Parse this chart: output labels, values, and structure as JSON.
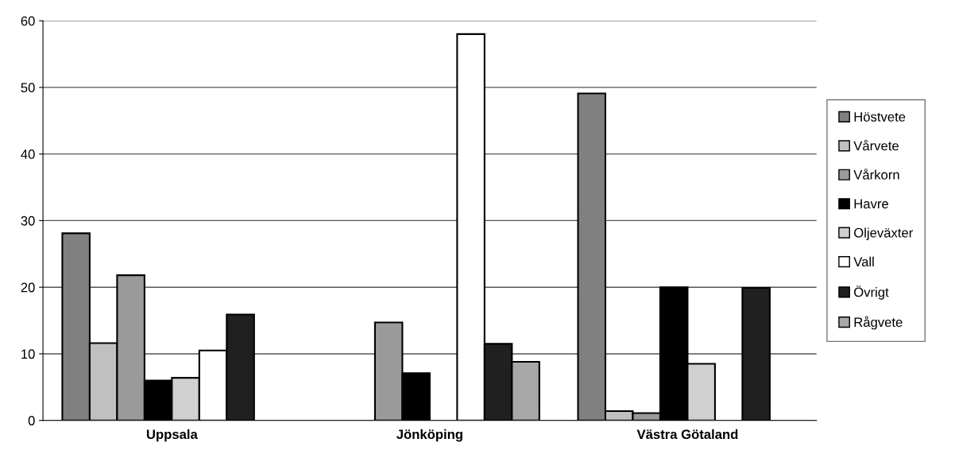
{
  "chart_data": {
    "type": "bar",
    "categories": [
      "Uppsala",
      "Jönköping",
      "Västra Götaland"
    ],
    "series": [
      {
        "name": "Höstvete",
        "color": "#808080",
        "values": [
          28.1,
          null,
          49.1
        ]
      },
      {
        "name": "Vårvete",
        "color": "#c0c0c0",
        "values": [
          11.6,
          null,
          1.4
        ]
      },
      {
        "name": "Vårkorn",
        "color": "#9a9a9a",
        "values": [
          21.8,
          14.7,
          1.1
        ]
      },
      {
        "name": "Havre",
        "color": "#000000",
        "values": [
          6.0,
          7.1,
          20.0
        ]
      },
      {
        "name": "Oljeväxter",
        "color": "#d0d0d0",
        "values": [
          6.4,
          null,
          8.5
        ]
      },
      {
        "name": "Vall",
        "color": "#ffffff",
        "values": [
          10.5,
          58.0,
          null
        ]
      },
      {
        "name": "Övrigt",
        "color": "#202020",
        "values": [
          15.9,
          11.5,
          19.9
        ]
      },
      {
        "name": "Rågvete",
        "color": "#a8a8a8",
        "values": [
          null,
          8.8,
          null
        ]
      }
    ],
    "ylim": [
      0,
      60
    ],
    "yticks": [
      0,
      10,
      20,
      30,
      40,
      50,
      60
    ],
    "grid": "y",
    "legend": "right"
  }
}
